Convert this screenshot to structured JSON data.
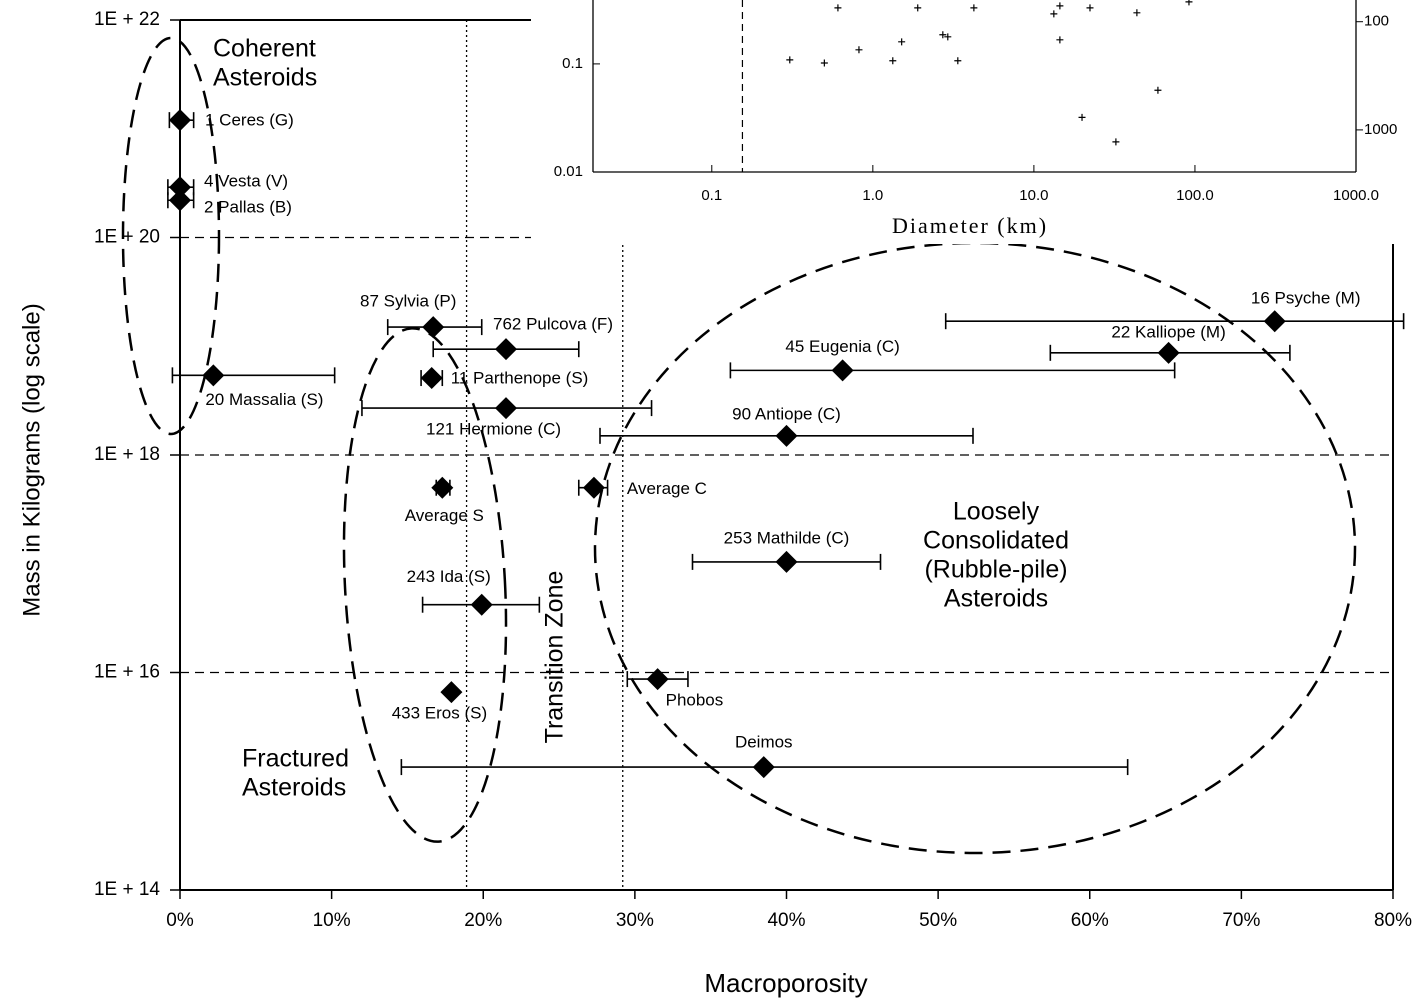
{
  "chart_data": [
    {
      "type": "scatter",
      "xlabel": "Macroporosity",
      "ylabel": "Mass in Kilograms (log scale)",
      "y_scale": "log",
      "xlim": [
        0,
        80
      ],
      "ylim": [
        100000000000000.0,
        1e+22
      ],
      "xticks": [
        {
          "value": 0,
          "label": "0%"
        },
        {
          "value": 10,
          "label": "10%"
        },
        {
          "value": 20,
          "label": "20%"
        },
        {
          "value": 30,
          "label": "30%"
        },
        {
          "value": 40,
          "label": "40%"
        },
        {
          "value": 50,
          "label": "50%"
        },
        {
          "value": 60,
          "label": "60%"
        },
        {
          "value": 70,
          "label": "70%"
        },
        {
          "value": 80,
          "label": "80%"
        }
      ],
      "yticks": [
        {
          "value": 100000000000000.0,
          "label": "1E + 14"
        },
        {
          "value": 1e+16,
          "label": "1E + 16"
        },
        {
          "value": 1e+18,
          "label": "1E + 18"
        },
        {
          "value": 1e+20,
          "label": "1E + 20"
        },
        {
          "value": 1e+22,
          "label": "1E + 22"
        }
      ],
      "grid": true,
      "vlines": [
        18.9,
        29.2
      ],
      "regions": [
        [
          "Coherent",
          "Asteroids"
        ],
        [
          "Fractured",
          "Asteroids"
        ],
        [
          "Loosely",
          "Consolidated",
          "(Rubble-pile)",
          "Asteroids"
        ]
      ],
      "zone_label": "Transition Zone",
      "series": [
        {
          "color": "#000000",
          "labels": [
            "1 Ceres (G)",
            "4 Vesta (V)",
            "2 Pallas (B)",
            "20 Massalia (S)",
            "87 Sylvia (P)",
            "762 Pulcova (F)",
            "11 Parthenope (S)",
            "121 Hermione (C)",
            "Average S",
            "Average C",
            "243 Ida (S)",
            "433 Eros (S)",
            "Phobos",
            "Deimos",
            "253 Mathilde (C)",
            "90 Antiope (C)",
            "45 Eugenia (C)",
            "22 Kalliope (M)",
            "16 Psyche (M)"
          ],
          "x": [
            0,
            0,
            0,
            2.2,
            16.7,
            21.5,
            16.6,
            21.5,
            17.3,
            27.3,
            19.9,
            17.9,
            31.5,
            38.5,
            40,
            40,
            43.7,
            65.2,
            72.2
          ],
          "values": [
            1.2e+21,
            2.9e+20,
            2.2e+20,
            5.4e+18,
            1.5e+19,
            9.4e+18,
            5.1e+18,
            2.7e+18,
            5e+17,
            5e+17,
            4.2e+16,
            6600000000000000.0,
            8700000000000000.0,
            1350000000000000.0,
            1.04e+17,
            1.5e+18,
            6e+18,
            8.7e+18,
            1.7e+19
          ],
          "x_low": [
            -0.7,
            -0.8,
            -0.8,
            -0.5,
            13.7,
            16.7,
            15.9,
            12.0,
            16.9,
            26.3,
            16.0,
            null,
            29.5,
            14.6,
            33.8,
            27.7,
            36.3,
            57.4,
            50.5
          ],
          "x_high": [
            0.9,
            0.9,
            0.9,
            10.2,
            19.9,
            26.3,
            17.3,
            31.1,
            17.8,
            28.2,
            23.7,
            null,
            33.5,
            62.5,
            46.2,
            52.3,
            65.6,
            73.2,
            80.7
          ]
        }
      ]
    },
    {
      "type": "scatter",
      "xlabel": "Diameter (km)",
      "x_scale": "log",
      "y_scale": "log",
      "y2_scale": "log",
      "xlim": [
        0.0183,
        1000
      ],
      "ylim": [
        0.01,
        0.39
      ],
      "y2lim": [
        2450,
        63
      ],
      "xticks": [
        0.1,
        {
          "value": 1,
          "label": "1.0"
        },
        {
          "value": 10,
          "label": "10.0"
        },
        {
          "value": 100,
          "label": "100.0"
        },
        {
          "value": 1000,
          "label": "1000.0"
        }
      ],
      "yticks": [
        0.01,
        0.1
      ],
      "y2ticks": [
        100,
        1000
      ],
      "vline": 0.155,
      "color": "#000000",
      "x": [
        0.305,
        0.5,
        0.607,
        0.82,
        1.33,
        1.51,
        1.9,
        2.72,
        2.92,
        3.37,
        4.24,
        13.3,
        14.5,
        14.5,
        22.3,
        43.6,
        58.9,
        19.9,
        32.3,
        91.8
      ],
      "values": [
        0.109,
        0.102,
        0.33,
        0.135,
        0.107,
        0.16,
        0.33,
        0.186,
        0.178,
        0.107,
        0.33,
        0.29,
        0.344,
        0.167,
        0.33,
        0.297,
        0.057,
        0.032,
        0.019,
        0.375
      ]
    }
  ]
}
